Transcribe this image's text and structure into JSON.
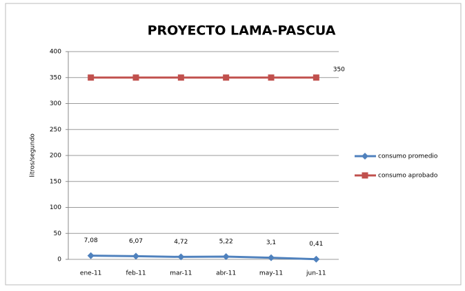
{
  "chart_data": {
    "type": "line",
    "title": "PROYECTO LAMA-PASCUA",
    "y_axis_label": "litros/segundo",
    "categories": [
      "ene-11",
      "feb-11",
      "mar-11",
      "abr-11",
      "may-11",
      "jun-11"
    ],
    "series": [
      {
        "name": "consumo promedio",
        "color": "#4f81bd",
        "marker": "diamond",
        "values": [
          7.08,
          6.07,
          4.72,
          5.22,
          3.1,
          0.41
        ],
        "value_labels": [
          "7,08",
          "6,07",
          "4,72",
          "5,22",
          "3,1",
          "0,41"
        ]
      },
      {
        "name": "consumo aprobado",
        "color": "#c0504d",
        "marker": "square",
        "values": [
          350,
          350,
          350,
          350,
          350,
          350
        ],
        "value_labels": [
          null,
          null,
          null,
          null,
          null,
          "350"
        ]
      }
    ],
    "ylim": [
      0,
      400
    ],
    "yticks": [
      0,
      50,
      100,
      150,
      200,
      250,
      300,
      350,
      400
    ],
    "grid": true,
    "legend": "right"
  }
}
